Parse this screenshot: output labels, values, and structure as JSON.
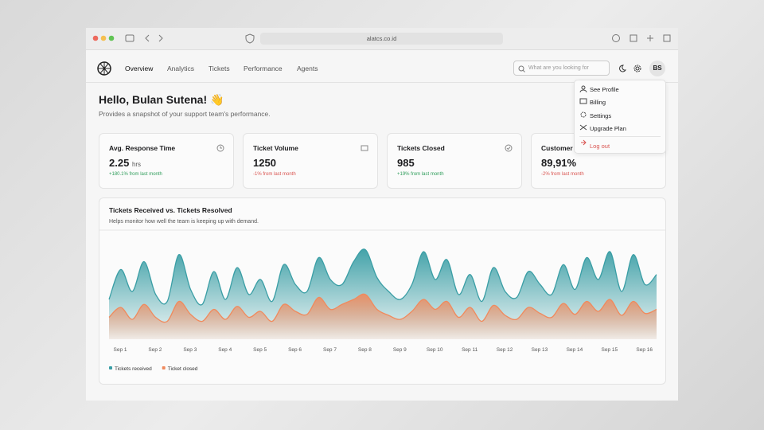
{
  "browser": {
    "url": "alatcs.co.id"
  },
  "nav": {
    "links": [
      "Overview",
      "Analytics",
      "Tickets",
      "Performance",
      "Agents"
    ],
    "search_placeholder": "What are you looking for",
    "avatar": "BS"
  },
  "header": {
    "title": "Hello, Bulan Sutena! 👋",
    "subtitle": "Provides a snapshot of your support team's performance."
  },
  "cards": [
    {
      "title": "Avg. Response Time",
      "value": "2.25",
      "unit": "hrs",
      "change": "+180.1% from last month"
    },
    {
      "title": "Ticket Volume",
      "value": "1250",
      "change": "-1% from last month"
    },
    {
      "title": "Tickets Closed",
      "value": "985",
      "change": "+19% from last month"
    },
    {
      "title": "Customer S",
      "value": "89,91%",
      "change": "-2% from last month"
    }
  ],
  "menu": {
    "items": [
      "See Profile",
      "Billing",
      "Settings",
      "Upgrade Plan"
    ],
    "logout": "Log out"
  },
  "chart_data": {
    "type": "area",
    "title": "Tickets Received vs. Tickets Resolved",
    "subtitle": "Helps monitor how well the team is keeping up with demand.",
    "categories": [
      "Sep 1",
      null,
      null,
      "Sep 2",
      null,
      null,
      "Sep 3",
      null,
      null,
      "Sep 4",
      null,
      null,
      "Sep 5",
      null,
      null,
      "Sep 6",
      null,
      null,
      "Sep 7",
      null,
      null,
      "Sep 8",
      null,
      null,
      "Sep 9",
      null,
      null,
      "Sep 10",
      null,
      null,
      "Sep 11",
      null,
      null,
      "Sep 12",
      null,
      null,
      "Sep 13",
      null,
      null,
      "Sep 14",
      null,
      null,
      "Sep 15",
      null,
      null,
      "Sep 16",
      null,
      null
    ],
    "ylim": [
      0,
      100
    ],
    "series": [
      {
        "name": "Tickets received",
        "color": "#3a9ea5",
        "values": [
          40,
          70,
          48,
          78,
          45,
          38,
          85,
          50,
          35,
          68,
          40,
          72,
          45,
          60,
          38,
          75,
          55,
          48,
          82,
          60,
          55,
          78,
          90,
          62,
          48,
          40,
          55,
          88,
          60,
          80,
          45,
          65,
          38,
          72,
          48,
          42,
          68,
          55,
          45,
          75,
          50,
          82,
          60,
          88,
          48,
          85,
          55,
          65
        ]
      },
      {
        "name": "Ticket closed",
        "color": "#f08a5d",
        "values": [
          22,
          32,
          20,
          35,
          22,
          18,
          38,
          25,
          18,
          30,
          20,
          33,
          22,
          28,
          18,
          35,
          28,
          25,
          42,
          30,
          35,
          40,
          45,
          30,
          24,
          20,
          28,
          40,
          30,
          38,
          22,
          32,
          18,
          34,
          24,
          20,
          32,
          26,
          22,
          36,
          25,
          38,
          28,
          40,
          24,
          38,
          26,
          30
        ]
      }
    ]
  }
}
